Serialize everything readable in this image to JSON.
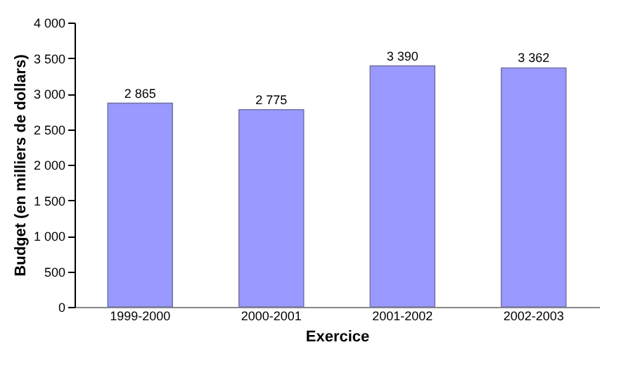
{
  "chart_data": {
    "type": "bar",
    "xlabel": "Exercice",
    "ylabel": "Budget (en milliers de dollars)",
    "categories": [
      "1999-2000",
      "2000-2001",
      "2001-2002",
      "2002-2003"
    ],
    "values": [
      2865,
      2775,
      3390,
      3362
    ],
    "value_labels": [
      "2 865",
      "2 775",
      "3 390",
      "3 362"
    ],
    "color": "#9999ff",
    "ylim": [
      0,
      4000
    ],
    "yticks": [
      0,
      500,
      {
        "value": 1000,
        "label": "1 000"
      },
      {
        "value": 1500,
        "label": "1 500"
      },
      {
        "value": 2000,
        "label": "2 000"
      },
      {
        "value": 2500,
        "label": "2 500"
      },
      {
        "value": 3000,
        "label": "3 000"
      },
      {
        "value": 3500,
        "label": "3 500"
      },
      {
        "value": 4000,
        "label": "4 000"
      }
    ],
    "grid": false
  }
}
